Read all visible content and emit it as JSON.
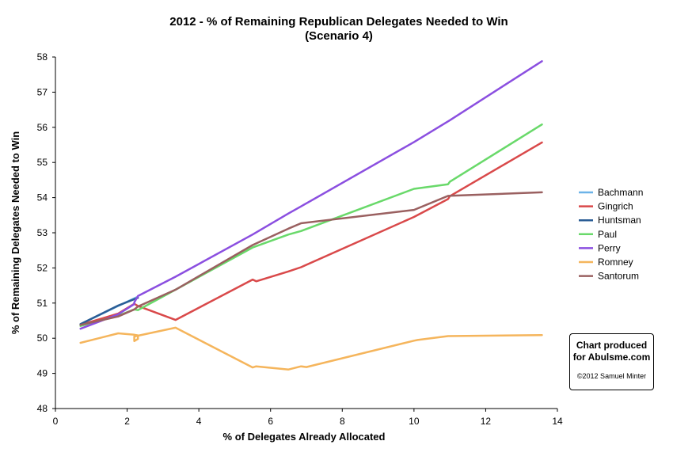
{
  "chart_data": {
    "type": "line",
    "title": "2012 - % of Remaining Republican Delegates Needed to Win",
    "subtitle": "(Scenario 4)",
    "xlabel": "% of Delegates Already Allocated",
    "ylabel": "% of Remaining Delegates Needed to Win",
    "xlim": [
      0,
      14
    ],
    "ylim": [
      48,
      58
    ],
    "xticks": [
      0,
      2,
      4,
      6,
      8,
      10,
      12,
      14
    ],
    "yticks": [
      48,
      49,
      50,
      51,
      52,
      53,
      54,
      55,
      56,
      57,
      58
    ],
    "grid": false,
    "legend_position": "right",
    "series": [
      {
        "name": "Bachmann",
        "color": "#6cb3e8",
        "points": [
          [
            0.7,
            50.4
          ],
          [
            1.75,
            50.92
          ],
          [
            2.25,
            51.16
          ]
        ]
      },
      {
        "name": "Gingrich",
        "color": "#d9494a",
        "points": [
          [
            0.7,
            50.38
          ],
          [
            1.75,
            50.7
          ],
          [
            2.2,
            50.98
          ],
          [
            2.3,
            50.92
          ],
          [
            3.35,
            50.52
          ],
          [
            5.5,
            51.67
          ],
          [
            5.6,
            51.62
          ],
          [
            6.5,
            51.9
          ],
          [
            6.85,
            52.02
          ],
          [
            10.0,
            53.45
          ],
          [
            10.95,
            53.96
          ],
          [
            11.0,
            54.04
          ],
          [
            13.57,
            55.57
          ]
        ]
      },
      {
        "name": "Huntsman",
        "color": "#2a5d95",
        "points": [
          [
            0.7,
            50.4
          ],
          [
            1.75,
            50.93
          ],
          [
            2.3,
            51.15
          ]
        ]
      },
      {
        "name": "Paul",
        "color": "#69d96a",
        "points": [
          [
            0.7,
            50.35
          ],
          [
            1.75,
            50.64
          ],
          [
            2.2,
            50.82
          ],
          [
            2.3,
            50.8
          ],
          [
            3.35,
            51.38
          ],
          [
            5.5,
            52.58
          ],
          [
            6.5,
            52.95
          ],
          [
            6.85,
            53.05
          ],
          [
            10.0,
            54.25
          ],
          [
            10.95,
            54.38
          ],
          [
            11.0,
            54.45
          ],
          [
            13.57,
            56.08
          ]
        ]
      },
      {
        "name": "Perry",
        "color": "#8b4fe0",
        "points": [
          [
            0.7,
            50.27
          ],
          [
            1.75,
            50.68
          ],
          [
            2.2,
            50.97
          ],
          [
            2.2,
            51.02
          ],
          [
            2.3,
            51.2
          ],
          [
            3.35,
            51.75
          ],
          [
            5.5,
            52.95
          ],
          [
            6.5,
            53.55
          ],
          [
            6.85,
            53.75
          ],
          [
            10.0,
            55.58
          ],
          [
            11.0,
            56.2
          ],
          [
            13.57,
            57.88
          ]
        ]
      },
      {
        "name": "Romney",
        "color": "#f5b55c",
        "points": [
          [
            0.7,
            49.87
          ],
          [
            1.75,
            50.14
          ],
          [
            2.2,
            50.1
          ],
          [
            2.3,
            50.08
          ],
          [
            2.3,
            49.98
          ],
          [
            2.2,
            49.92
          ],
          [
            2.2,
            50.05
          ],
          [
            3.35,
            50.3
          ],
          [
            5.5,
            49.17
          ],
          [
            5.6,
            49.2
          ],
          [
            6.5,
            49.11
          ],
          [
            6.85,
            49.2
          ],
          [
            7.0,
            49.18
          ],
          [
            10.0,
            49.93
          ],
          [
            10.1,
            49.95
          ],
          [
            10.95,
            50.06
          ],
          [
            13.57,
            50.09
          ]
        ]
      },
      {
        "name": "Santorum",
        "color": "#9a6060",
        "points": [
          [
            0.7,
            50.38
          ],
          [
            1.75,
            50.62
          ],
          [
            2.2,
            50.82
          ],
          [
            2.3,
            50.9
          ],
          [
            3.35,
            51.38
          ],
          [
            5.5,
            52.65
          ],
          [
            6.5,
            53.12
          ],
          [
            6.85,
            53.27
          ],
          [
            10.0,
            53.65
          ],
          [
            10.95,
            54.05
          ],
          [
            13.57,
            54.15
          ]
        ]
      }
    ]
  },
  "credit": {
    "line1": "Chart produced",
    "line2": "for Abulsme.com",
    "copyright": "©2012 Samuel Minter"
  }
}
